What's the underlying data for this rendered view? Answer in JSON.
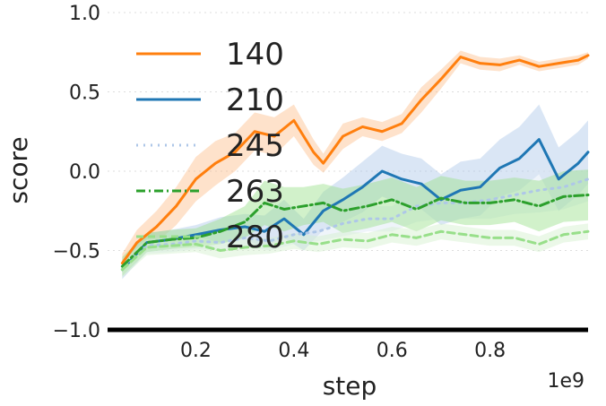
{
  "chart_data": {
    "type": "line",
    "xlabel": "step",
    "ylabel": "score",
    "x_exponent_label": "1e9",
    "xlim": [
      0.02,
      1.0
    ],
    "ylim": [
      -1.0,
      1.0
    ],
    "x_ticks": [
      0.2,
      0.4,
      0.6,
      0.8
    ],
    "x_tick_labels": [
      "0.2",
      "0.4",
      "0.6",
      "0.8"
    ],
    "y_ticks": [
      -1.0,
      -0.5,
      0.0,
      0.5,
      1.0
    ],
    "y_tick_labels": [
      "−1.0",
      "−0.5",
      "0.0",
      "0.5",
      "1.0"
    ],
    "grid": "horizontal dotted",
    "legend_position": "top-left",
    "series": [
      {
        "name": "140",
        "color": "#ff7f0e",
        "style": "solid",
        "band_color": "#fdbf8c",
        "x": [
          0.05,
          0.08,
          0.12,
          0.16,
          0.2,
          0.24,
          0.28,
          0.32,
          0.36,
          0.4,
          0.44,
          0.46,
          0.5,
          0.54,
          0.58,
          0.62,
          0.66,
          0.7,
          0.74,
          0.78,
          0.82,
          0.86,
          0.9,
          0.94,
          0.98,
          1.0
        ],
        "y": [
          -0.58,
          -0.45,
          -0.35,
          -0.22,
          -0.05,
          0.05,
          0.12,
          0.25,
          0.22,
          0.32,
          0.12,
          0.05,
          0.22,
          0.28,
          0.25,
          0.3,
          0.45,
          0.58,
          0.72,
          0.68,
          0.67,
          0.7,
          0.66,
          0.68,
          0.7,
          0.73
        ],
        "band": [
          0.06,
          0.08,
          0.1,
          0.12,
          0.14,
          0.14,
          0.12,
          0.12,
          0.12,
          0.1,
          0.08,
          0.06,
          0.08,
          0.06,
          0.06,
          0.06,
          0.08,
          0.06,
          0.04,
          0.04,
          0.04,
          0.03,
          0.03,
          0.03,
          0.03,
          0.02
        ]
      },
      {
        "name": "210",
        "color": "#1f77b4",
        "style": "solid",
        "band_color": "#aec7e8",
        "x": [
          0.05,
          0.1,
          0.15,
          0.2,
          0.25,
          0.3,
          0.34,
          0.38,
          0.42,
          0.46,
          0.5,
          0.54,
          0.58,
          0.62,
          0.66,
          0.7,
          0.74,
          0.78,
          0.82,
          0.86,
          0.9,
          0.94,
          0.98,
          1.0
        ],
        "y": [
          -0.62,
          -0.45,
          -0.43,
          -0.4,
          -0.37,
          -0.35,
          -0.38,
          -0.3,
          -0.4,
          -0.25,
          -0.18,
          -0.1,
          0.0,
          -0.05,
          -0.08,
          -0.18,
          -0.12,
          -0.1,
          0.02,
          0.08,
          0.2,
          -0.05,
          0.05,
          0.12
        ],
        "band": [
          0.06,
          0.06,
          0.06,
          0.06,
          0.08,
          0.08,
          0.1,
          0.12,
          0.1,
          0.12,
          0.14,
          0.16,
          0.16,
          0.16,
          0.16,
          0.16,
          0.18,
          0.18,
          0.18,
          0.2,
          0.22,
          0.2,
          0.2,
          0.2
        ]
      },
      {
        "name": "245",
        "color": "#aec7e8",
        "style": "dotted",
        "band_color": "#dbe6f3",
        "x": [
          0.05,
          0.1,
          0.15,
          0.2,
          0.25,
          0.3,
          0.35,
          0.4,
          0.45,
          0.5,
          0.55,
          0.6,
          0.65,
          0.7,
          0.75,
          0.8,
          0.85,
          0.9,
          0.95,
          1.0
        ],
        "y": [
          -0.6,
          -0.47,
          -0.46,
          -0.44,
          -0.45,
          -0.42,
          -0.44,
          -0.4,
          -0.38,
          -0.33,
          -0.3,
          -0.3,
          -0.22,
          -0.2,
          -0.2,
          -0.18,
          -0.15,
          -0.12,
          -0.1,
          -0.05
        ],
        "band": [
          0.05,
          0.05,
          0.05,
          0.05,
          0.05,
          0.05,
          0.06,
          0.06,
          0.06,
          0.08,
          0.08,
          0.08,
          0.1,
          0.1,
          0.1,
          0.12,
          0.12,
          0.14,
          0.14,
          0.14
        ]
      },
      {
        "name": "263",
        "color": "#2ca02c",
        "style": "dashdot",
        "band_color": "#98df8a",
        "x": [
          0.05,
          0.1,
          0.15,
          0.2,
          0.25,
          0.3,
          0.34,
          0.38,
          0.42,
          0.46,
          0.5,
          0.55,
          0.6,
          0.65,
          0.7,
          0.75,
          0.8,
          0.85,
          0.9,
          0.95,
          1.0
        ],
        "y": [
          -0.6,
          -0.45,
          -0.43,
          -0.42,
          -0.38,
          -0.32,
          -0.2,
          -0.24,
          -0.22,
          -0.2,
          -0.25,
          -0.22,
          -0.18,
          -0.24,
          -0.17,
          -0.2,
          -0.2,
          -0.18,
          -0.22,
          -0.16,
          -0.15
        ],
        "band": [
          0.06,
          0.06,
          0.06,
          0.06,
          0.08,
          0.1,
          0.14,
          0.14,
          0.12,
          0.12,
          0.14,
          0.14,
          0.14,
          0.14,
          0.14,
          0.14,
          0.14,
          0.14,
          0.16,
          0.16,
          0.16
        ]
      },
      {
        "name": "280",
        "color": "#98df8a",
        "style": "dashed",
        "band_color": "#d2f0cb",
        "x": [
          0.05,
          0.1,
          0.15,
          0.2,
          0.25,
          0.3,
          0.35,
          0.4,
          0.45,
          0.5,
          0.55,
          0.6,
          0.65,
          0.7,
          0.75,
          0.8,
          0.85,
          0.9,
          0.95,
          1.0
        ],
        "y": [
          -0.62,
          -0.48,
          -0.47,
          -0.46,
          -0.5,
          -0.48,
          -0.47,
          -0.44,
          -0.46,
          -0.43,
          -0.44,
          -0.4,
          -0.42,
          -0.38,
          -0.4,
          -0.42,
          -0.42,
          -0.46,
          -0.4,
          -0.38
        ],
        "band": [
          0.05,
          0.05,
          0.05,
          0.05,
          0.05,
          0.05,
          0.05,
          0.05,
          0.05,
          0.05,
          0.05,
          0.05,
          0.05,
          0.05,
          0.05,
          0.05,
          0.05,
          0.05,
          0.05,
          0.05
        ]
      }
    ]
  }
}
